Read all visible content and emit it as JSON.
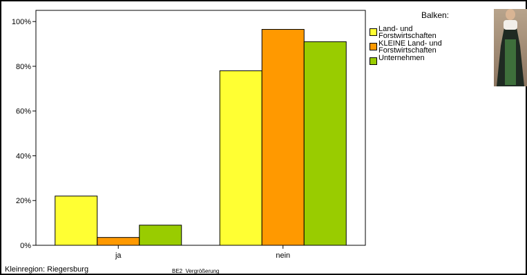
{
  "chart_data": {
    "type": "bar",
    "categories": [
      "ja",
      "nein"
    ],
    "series": [
      {
        "name": "Land- und\nForstwirtschaften",
        "color": "#ffff33",
        "values": [
          22,
          78
        ]
      },
      {
        "name": "KLEINE Land- und\nForstwirtschaften",
        "color": "#ff9900",
        "values": [
          3.5,
          96.5
        ]
      },
      {
        "name": "Unternehmen",
        "color": "#99cc00",
        "values": [
          9,
          91
        ]
      }
    ],
    "ylim": [
      0,
      105
    ],
    "yticks": [
      "0%",
      "20%",
      "40%",
      "60%",
      "80%",
      "100%"
    ],
    "ytick_values": [
      0,
      20,
      40,
      60,
      80,
      100
    ],
    "legend_title": "Balken:",
    "legend_position": "right",
    "grid": false
  },
  "footer": {
    "region": "Kleinregion: Riegersburg",
    "caption": "BE2_Vergrößerung"
  },
  "photo_icon": "woman-in-dirndl-photo"
}
